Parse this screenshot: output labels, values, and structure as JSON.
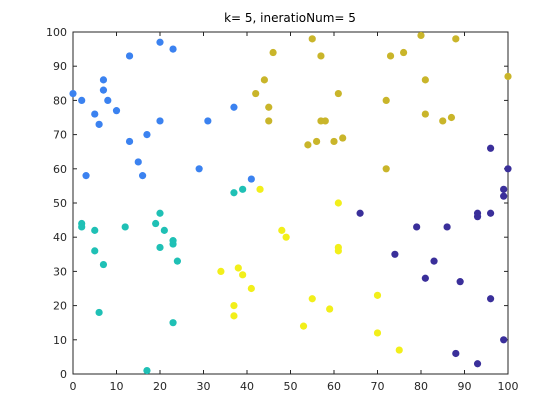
{
  "chart_data": {
    "type": "scatter",
    "title": "k= 5, ineratioNum= 5",
    "xlabel": "",
    "ylabel": "",
    "xlim": [
      0,
      100
    ],
    "ylim": [
      0,
      100
    ],
    "xticks": [
      0,
      10,
      20,
      30,
      40,
      50,
      60,
      70,
      80,
      90,
      100
    ],
    "yticks": [
      0,
      10,
      20,
      30,
      40,
      50,
      60,
      70,
      80,
      90,
      100
    ],
    "xtick_labels": [
      "0",
      "10",
      "20",
      "30",
      "40",
      "50",
      "60",
      "70",
      "80",
      "90",
      "100"
    ],
    "ytick_labels": [
      "0",
      "10",
      "20",
      "30",
      "40",
      "50",
      "60",
      "70",
      "80",
      "90",
      "100"
    ],
    "grid": false,
    "series": [
      {
        "color": "#3b82f0",
        "points": [
          [
            0,
            82
          ],
          [
            2,
            80
          ],
          [
            5,
            76
          ],
          [
            6,
            73
          ],
          [
            7,
            86
          ],
          [
            7,
            83
          ],
          [
            8,
            80
          ],
          [
            10,
            77
          ],
          [
            13,
            93
          ],
          [
            13,
            68
          ],
          [
            15,
            62
          ],
          [
            16,
            58
          ],
          [
            17,
            70
          ],
          [
            20,
            97
          ],
          [
            20,
            74
          ],
          [
            23,
            95
          ],
          [
            29,
            60
          ],
          [
            31,
            74
          ],
          [
            37,
            78
          ],
          [
            41,
            57
          ],
          [
            3,
            58
          ]
        ]
      },
      {
        "color": "#1fc0b5",
        "points": [
          [
            2,
            44
          ],
          [
            2,
            43
          ],
          [
            5,
            42
          ],
          [
            5,
            36
          ],
          [
            6,
            18
          ],
          [
            7,
            32
          ],
          [
            12,
            43
          ],
          [
            17,
            1
          ],
          [
            19,
            44
          ],
          [
            20,
            47
          ],
          [
            20,
            37
          ],
          [
            21,
            42
          ],
          [
            23,
            39
          ],
          [
            23,
            38
          ],
          [
            23,
            15
          ],
          [
            24,
            33
          ],
          [
            37,
            53
          ],
          [
            39,
            54
          ]
        ]
      },
      {
        "color": "#c9b52a",
        "points": [
          [
            42,
            82
          ],
          [
            44,
            86
          ],
          [
            45,
            78
          ],
          [
            45,
            74
          ],
          [
            46,
            94
          ],
          [
            54,
            67
          ],
          [
            55,
            98
          ],
          [
            56,
            68
          ],
          [
            57,
            93
          ],
          [
            57,
            74
          ],
          [
            58,
            74
          ],
          [
            60,
            68
          ],
          [
            61,
            82
          ],
          [
            62,
            69
          ],
          [
            72,
            80
          ],
          [
            72,
            60
          ],
          [
            73,
            93
          ],
          [
            76,
            94
          ],
          [
            80,
            99
          ],
          [
            81,
            86
          ],
          [
            81,
            76
          ],
          [
            85,
            74
          ],
          [
            87,
            75
          ],
          [
            88,
            98
          ],
          [
            100,
            87
          ]
        ]
      },
      {
        "color": "#f2ef1a",
        "points": [
          [
            34,
            30
          ],
          [
            37,
            20
          ],
          [
            37,
            17
          ],
          [
            38,
            31
          ],
          [
            39,
            29
          ],
          [
            41,
            25
          ],
          [
            43,
            54
          ],
          [
            48,
            42
          ],
          [
            49,
            40
          ],
          [
            53,
            14
          ],
          [
            55,
            22
          ],
          [
            59,
            19
          ],
          [
            61,
            50
          ],
          [
            61,
            37
          ],
          [
            61,
            36
          ],
          [
            70,
            23
          ],
          [
            70,
            12
          ],
          [
            75,
            7
          ]
        ]
      },
      {
        "color": "#3a2f9a",
        "points": [
          [
            66,
            47
          ],
          [
            74,
            35
          ],
          [
            79,
            43
          ],
          [
            81,
            28
          ],
          [
            83,
            33
          ],
          [
            86,
            43
          ],
          [
            88,
            6
          ],
          [
            89,
            27
          ],
          [
            93,
            47
          ],
          [
            93,
            46
          ],
          [
            93,
            3
          ],
          [
            96,
            66
          ],
          [
            96,
            47
          ],
          [
            96,
            22
          ],
          [
            99,
            54
          ],
          [
            99,
            52
          ],
          [
            99,
            10
          ],
          [
            100,
            60
          ]
        ]
      }
    ]
  }
}
